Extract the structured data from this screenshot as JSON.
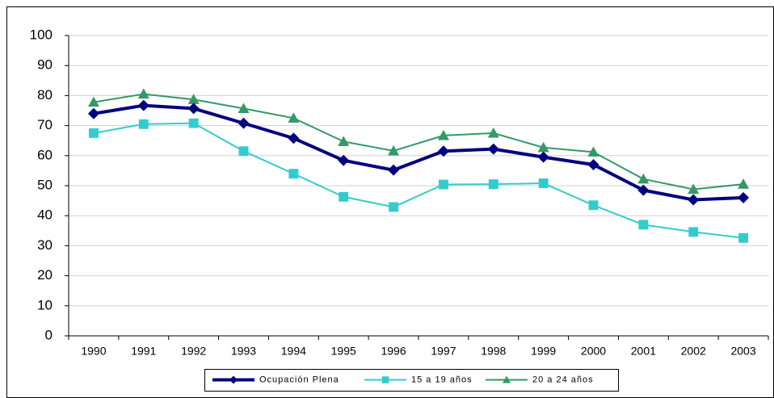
{
  "chart_data": {
    "type": "line",
    "categories": [
      "1990",
      "1991",
      "1992",
      "1993",
      "1994",
      "1995",
      "1996",
      "1997",
      "1998",
      "1999",
      "2000",
      "2001",
      "2002",
      "2003"
    ],
    "series": [
      {
        "name": "Ocupación Plena",
        "color": "#00007f",
        "marker": "diamond",
        "values": [
          74,
          76.7,
          75.7,
          70.8,
          65.8,
          58.4,
          55.2,
          61.5,
          62.2,
          59.5,
          57,
          48.5,
          45.3,
          46
        ]
      },
      {
        "name": "15 a 19 años",
        "color": "#33cccc",
        "marker": "square",
        "values": [
          67.5,
          70.5,
          70.8,
          61.5,
          54,
          46.3,
          42.9,
          50.4,
          50.5,
          50.8,
          43.5,
          37,
          34.6,
          32.6
        ]
      },
      {
        "name": "20 a 24 años",
        "color": "#339966",
        "marker": "triangle",
        "values": [
          77.8,
          80.5,
          78.7,
          75.7,
          72.5,
          64.7,
          61.6,
          66.7,
          67.5,
          62.7,
          61.2,
          52.2,
          48.8,
          50.5
        ]
      }
    ],
    "ylim": [
      0,
      100
    ],
    "yticks": [
      0,
      10,
      20,
      30,
      40,
      50,
      60,
      70,
      80,
      90,
      100
    ],
    "grid": true,
    "legend": "bottom"
  }
}
